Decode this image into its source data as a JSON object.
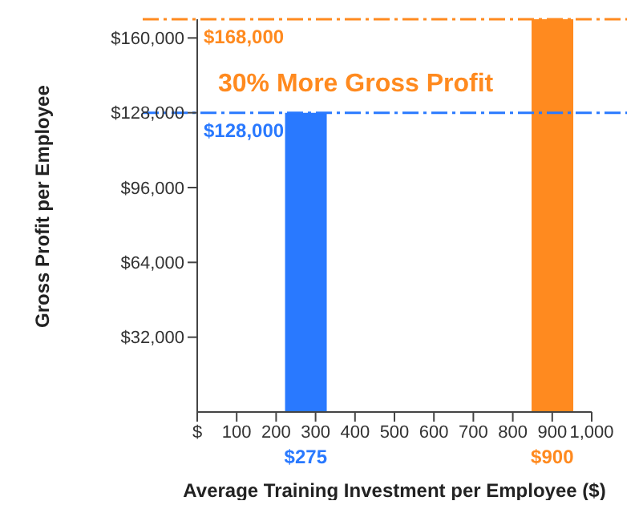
{
  "chart_data": {
    "type": "bar",
    "xlabel": "Average Training Investment per Employee ($)",
    "ylabel": "Gross Profit per Employee",
    "series": [
      {
        "color": "#2979ff",
        "x": [
          275
        ],
        "values": [
          128000
        ]
      },
      {
        "color": "#ff8a1f",
        "x": [
          900
        ],
        "values": [
          168000
        ]
      }
    ],
    "xlim": [
      0,
      1000
    ],
    "xticks": [
      {
        "value": 0,
        "label": "$"
      },
      100,
      200,
      300,
      400,
      500,
      600,
      700,
      800,
      900,
      {
        "value": 1000,
        "label": "1,000"
      }
    ],
    "ylim": [
      0,
      168000
    ],
    "yticks": [
      {
        "value": 32000,
        "label": "$32,000"
      },
      {
        "value": 64000,
        "label": "$64,000"
      },
      {
        "value": 96000,
        "label": "$96,000"
      },
      {
        "value": 128000,
        "label": "$128,000"
      },
      {
        "value": 160000,
        "label": "$160,000"
      }
    ],
    "ref_lines": [
      {
        "axis": "y",
        "value": 128000,
        "label": "$128,000",
        "color": "#2979ff",
        "line_style": "dashed"
      },
      {
        "axis": "y",
        "value": 168000,
        "label": "$168,000",
        "color": "#ff8a1f",
        "line_style": "dashed"
      }
    ],
    "annotations": [
      "30% More Gross Profit",
      {
        "text": "$275",
        "x": 275,
        "y": 0
      },
      {
        "text": "$900",
        "x": 900,
        "y": 0
      }
    ],
    "grid": false,
    "legend": false
  }
}
